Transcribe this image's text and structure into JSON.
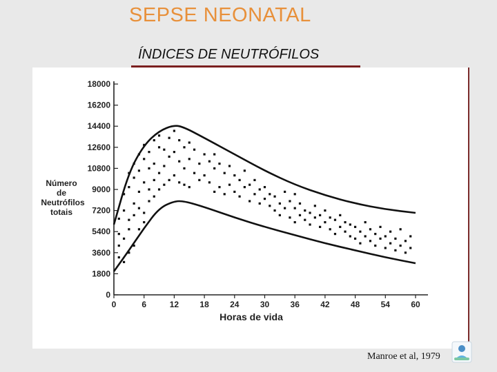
{
  "slide": {
    "title": "SEPSE NEONATAL",
    "subtitle": "ÍNDICES DE NEUTRÓFILOS",
    "citation": "Manroe et al, 1979",
    "accent_color": "#e8903a",
    "bar_color": "#7a1e1e"
  },
  "chart_data": {
    "type": "scatter",
    "xlabel": "Horas de vida",
    "ylabel_lines": [
      "Número",
      "de",
      "Neutrófilos",
      "totais"
    ],
    "xlim": [
      0,
      60
    ],
    "ylim": [
      0,
      18000
    ],
    "x_ticks": [
      0,
      6,
      12,
      18,
      24,
      30,
      36,
      42,
      48,
      54,
      60
    ],
    "y_ticks": [
      0,
      1800,
      3600,
      5400,
      7200,
      9000,
      10800,
      12600,
      14400,
      16200,
      18000
    ],
    "upper_boundary": [
      [
        0,
        6000
      ],
      [
        3,
        10500
      ],
      [
        6,
        12800
      ],
      [
        9,
        14000
      ],
      [
        12,
        14500
      ],
      [
        14,
        14300
      ],
      [
        18,
        13400
      ],
      [
        24,
        12000
      ],
      [
        30,
        10600
      ],
      [
        36,
        9400
      ],
      [
        42,
        8500
      ],
      [
        48,
        7800
      ],
      [
        54,
        7300
      ],
      [
        60,
        7000
      ]
    ],
    "lower_boundary": [
      [
        0,
        2000
      ],
      [
        3,
        3800
      ],
      [
        6,
        5700
      ],
      [
        9,
        7400
      ],
      [
        12,
        8000
      ],
      [
        14,
        8000
      ],
      [
        18,
        7500
      ],
      [
        24,
        6600
      ],
      [
        30,
        5800
      ],
      [
        36,
        5100
      ],
      [
        42,
        4400
      ],
      [
        48,
        3800
      ],
      [
        54,
        3200
      ],
      [
        60,
        2700
      ]
    ],
    "points": [
      [
        1,
        3200
      ],
      [
        1,
        4200
      ],
      [
        1,
        5200
      ],
      [
        1,
        6500
      ],
      [
        2,
        2800
      ],
      [
        2,
        4800
      ],
      [
        2,
        7200
      ],
      [
        2,
        8600
      ],
      [
        3,
        3600
      ],
      [
        3,
        5600
      ],
      [
        3,
        6400
      ],
      [
        3,
        9200
      ],
      [
        3,
        10400
      ],
      [
        4,
        4200
      ],
      [
        4,
        6800
      ],
      [
        4,
        7800
      ],
      [
        4,
        10000
      ],
      [
        4,
        11200
      ],
      [
        5,
        5600
      ],
      [
        5,
        7400
      ],
      [
        5,
        8800
      ],
      [
        5,
        10600
      ],
      [
        5,
        12000
      ],
      [
        6,
        6200
      ],
      [
        6,
        7000
      ],
      [
        6,
        9600
      ],
      [
        6,
        11600
      ],
      [
        6,
        12800
      ],
      [
        7,
        8000
      ],
      [
        7,
        9000
      ],
      [
        7,
        10800
      ],
      [
        7,
        12200
      ],
      [
        8,
        8400
      ],
      [
        8,
        9800
      ],
      [
        8,
        11200
      ],
      [
        8,
        13200
      ],
      [
        9,
        9000
      ],
      [
        9,
        10400
      ],
      [
        9,
        12600
      ],
      [
        9,
        13600
      ],
      [
        10,
        9400
      ],
      [
        10,
        11000
      ],
      [
        10,
        12400
      ],
      [
        11,
        9800
      ],
      [
        11,
        11800
      ],
      [
        11,
        13400
      ],
      [
        12,
        10200
      ],
      [
        12,
        12200
      ],
      [
        12,
        14000
      ],
      [
        13,
        9600
      ],
      [
        13,
        11400
      ],
      [
        13,
        13200
      ],
      [
        14,
        9400
      ],
      [
        14,
        10800
      ],
      [
        14,
        12600
      ],
      [
        15,
        9200
      ],
      [
        15,
        11600
      ],
      [
        15,
        13000
      ],
      [
        16,
        10400
      ],
      [
        16,
        12400
      ],
      [
        17,
        9800
      ],
      [
        17,
        11200
      ],
      [
        18,
        10200
      ],
      [
        18,
        12000
      ],
      [
        19,
        9600
      ],
      [
        19,
        11400
      ],
      [
        20,
        8800
      ],
      [
        20,
        10800
      ],
      [
        20,
        12000
      ],
      [
        21,
        9200
      ],
      [
        21,
        11200
      ],
      [
        22,
        8600
      ],
      [
        22,
        10400
      ],
      [
        23,
        9400
      ],
      [
        23,
        11000
      ],
      [
        24,
        8800
      ],
      [
        24,
        10200
      ],
      [
        25,
        8400
      ],
      [
        25,
        9800
      ],
      [
        26,
        9200
      ],
      [
        26,
        10600
      ],
      [
        27,
        8000
      ],
      [
        27,
        9400
      ],
      [
        28,
        8600
      ],
      [
        28,
        9800
      ],
      [
        29,
        7800
      ],
      [
        29,
        9000
      ],
      [
        30,
        8200
      ],
      [
        30,
        9200
      ],
      [
        31,
        7600
      ],
      [
        31,
        8600
      ],
      [
        32,
        7200
      ],
      [
        32,
        8400
      ],
      [
        33,
        6800
      ],
      [
        33,
        7800
      ],
      [
        34,
        7400
      ],
      [
        34,
        8800
      ],
      [
        35,
        6600
      ],
      [
        35,
        8000
      ],
      [
        36,
        6200
      ],
      [
        36,
        7400
      ],
      [
        36,
        8600
      ],
      [
        37,
        6800
      ],
      [
        37,
        7800
      ],
      [
        38,
        6400
      ],
      [
        38,
        7200
      ],
      [
        39,
        6000
      ],
      [
        39,
        7000
      ],
      [
        40,
        6600
      ],
      [
        40,
        7600
      ],
      [
        41,
        5800
      ],
      [
        41,
        6800
      ],
      [
        42,
        6200
      ],
      [
        42,
        7200
      ],
      [
        43,
        5600
      ],
      [
        43,
        6600
      ],
      [
        44,
        5200
      ],
      [
        44,
        6400
      ],
      [
        45,
        5800
      ],
      [
        45,
        6800
      ],
      [
        46,
        5400
      ],
      [
        46,
        6200
      ],
      [
        47,
        5000
      ],
      [
        47,
        6000
      ],
      [
        48,
        4800
      ],
      [
        48,
        5800
      ],
      [
        49,
        4400
      ],
      [
        49,
        5400
      ],
      [
        50,
        5000
      ],
      [
        50,
        6200
      ],
      [
        51,
        4600
      ],
      [
        51,
        5600
      ],
      [
        52,
        4200
      ],
      [
        52,
        5200
      ],
      [
        53,
        4800
      ],
      [
        53,
        5800
      ],
      [
        54,
        4000
      ],
      [
        54,
        5000
      ],
      [
        55,
        4400
      ],
      [
        55,
        5400
      ],
      [
        56,
        3800
      ],
      [
        56,
        4800
      ],
      [
        57,
        4200
      ],
      [
        57,
        5600
      ],
      [
        58,
        3600
      ],
      [
        58,
        4600
      ],
      [
        59,
        4000
      ],
      [
        59,
        5000
      ]
    ]
  }
}
